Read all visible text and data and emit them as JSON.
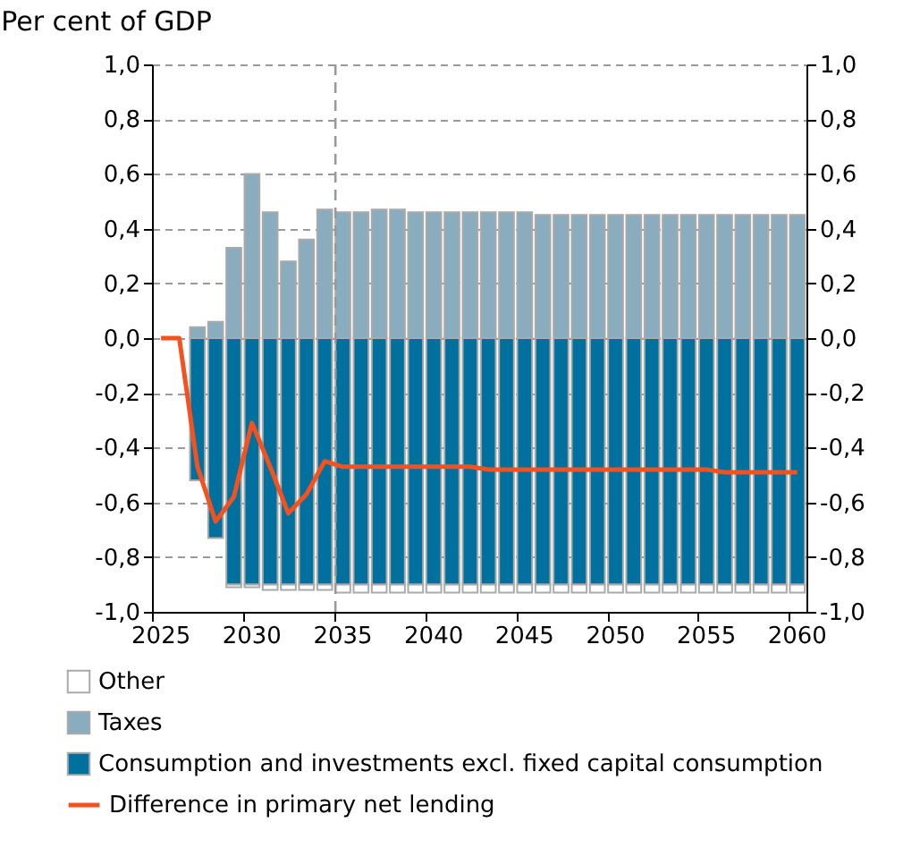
{
  "chart_data": {
    "type": "bar",
    "ylabel": "Per cent of GDP",
    "categories": [
      "2025",
      null,
      null,
      null,
      null,
      "2030",
      null,
      null,
      null,
      null,
      "2035",
      null,
      null,
      null,
      null,
      "2040",
      null,
      null,
      null,
      null,
      "2045",
      null,
      null,
      null,
      null,
      "2050",
      null,
      null,
      null,
      null,
      "2055",
      null,
      null,
      null,
      null,
      "2060"
    ],
    "stacked": true,
    "series": [
      {
        "name": "Consumption and investments excl. fixed capital consumption",
        "type": "bar",
        "color": "#00709f",
        "values": [
          null,
          null,
          -0.52,
          -0.73,
          -0.9,
          -0.9,
          -0.9,
          -0.9,
          -0.9,
          -0.9,
          -0.9,
          -0.9,
          -0.9,
          -0.9,
          -0.9,
          -0.9,
          -0.9,
          -0.9,
          -0.9,
          -0.9,
          -0.9,
          -0.9,
          -0.9,
          -0.9,
          -0.9,
          -0.9,
          -0.9,
          -0.9,
          -0.9,
          -0.9,
          -0.9,
          -0.9,
          -0.9,
          -0.9,
          -0.9,
          -0.9
        ]
      },
      {
        "name": "Taxes",
        "type": "bar",
        "color": "#89acbe",
        "values": [
          null,
          null,
          0.04,
          0.06,
          0.33,
          0.6,
          0.46,
          0.28,
          0.36,
          0.47,
          0.46,
          0.46,
          0.47,
          0.47,
          0.46,
          0.46,
          0.46,
          0.46,
          0.46,
          0.46,
          0.46,
          0.45,
          0.45,
          0.45,
          0.45,
          0.45,
          0.45,
          0.45,
          0.45,
          0.45,
          0.45,
          0.45,
          0.45,
          0.45,
          0.45,
          0.45
        ]
      },
      {
        "name": "Other",
        "type": "bar",
        "color": "#ffffff",
        "values": [
          null,
          null,
          null,
          null,
          -0.01,
          -0.01,
          -0.02,
          -0.02,
          -0.02,
          -0.02,
          -0.03,
          -0.03,
          -0.03,
          -0.03,
          -0.03,
          -0.03,
          -0.03,
          -0.03,
          -0.03,
          -0.03,
          -0.03,
          -0.03,
          -0.03,
          -0.03,
          -0.03,
          -0.03,
          -0.03,
          -0.03,
          -0.03,
          -0.03,
          -0.03,
          -0.03,
          -0.03,
          -0.03,
          -0.03,
          -0.03
        ]
      },
      {
        "name": "Difference in primary net lending",
        "type": "line",
        "color": "#f4511e",
        "line_style": "solid",
        "marker": "none",
        "values": [
          0,
          0,
          -0.47,
          -0.67,
          -0.58,
          -0.31,
          -0.47,
          -0.64,
          -0.57,
          -0.45,
          -0.47,
          -0.47,
          -0.47,
          -0.47,
          -0.47,
          -0.47,
          -0.47,
          -0.47,
          -0.48,
          -0.48,
          -0.48,
          -0.48,
          -0.48,
          -0.48,
          -0.48,
          -0.48,
          -0.48,
          -0.48,
          -0.48,
          -0.48,
          -0.48,
          -0.49,
          -0.49,
          -0.49,
          -0.49,
          -0.49
        ]
      }
    ],
    "ylim": [
      -1,
      1
    ],
    "yticks": [
      {
        "value": -1,
        "label": "-1,0"
      },
      {
        "value": -0.8,
        "label": "-0,8"
      },
      {
        "value": -0.6,
        "label": "-0,6"
      },
      {
        "value": -0.4,
        "label": "-0,4"
      },
      {
        "value": -0.2,
        "label": "-0,2"
      },
      {
        "value": 0,
        "label": "0,0"
      },
      {
        "value": 0.2,
        "label": "0,2"
      },
      {
        "value": 0.4,
        "label": "0,4"
      },
      {
        "value": 0.6,
        "label": "0,6"
      },
      {
        "value": 0.8,
        "label": "0,8"
      },
      {
        "value": 1,
        "label": "1,0"
      }
    ],
    "y2lim": [
      -1,
      1
    ],
    "y2ticks": [
      {
        "value": -1,
        "label": "-1,0"
      },
      {
        "value": -0.8,
        "label": "-0,8"
      },
      {
        "value": -0.6,
        "label": "-0,6"
      },
      {
        "value": -0.4,
        "label": "-0,4"
      },
      {
        "value": -0.2,
        "label": "-0,2"
      },
      {
        "value": 0,
        "label": "0,0"
      },
      {
        "value": 0.2,
        "label": "0,2"
      },
      {
        "value": 0.4,
        "label": "0,4"
      },
      {
        "value": 0.6,
        "label": "0,6"
      },
      {
        "value": 0.8,
        "label": "0,8"
      },
      {
        "value": 1,
        "label": "1,0"
      }
    ],
    "ref_lines": [
      {
        "axis": "x",
        "value": "2035",
        "color": "#999999",
        "line_style": "dashed"
      }
    ],
    "grid": "y",
    "legend": "bottom"
  }
}
